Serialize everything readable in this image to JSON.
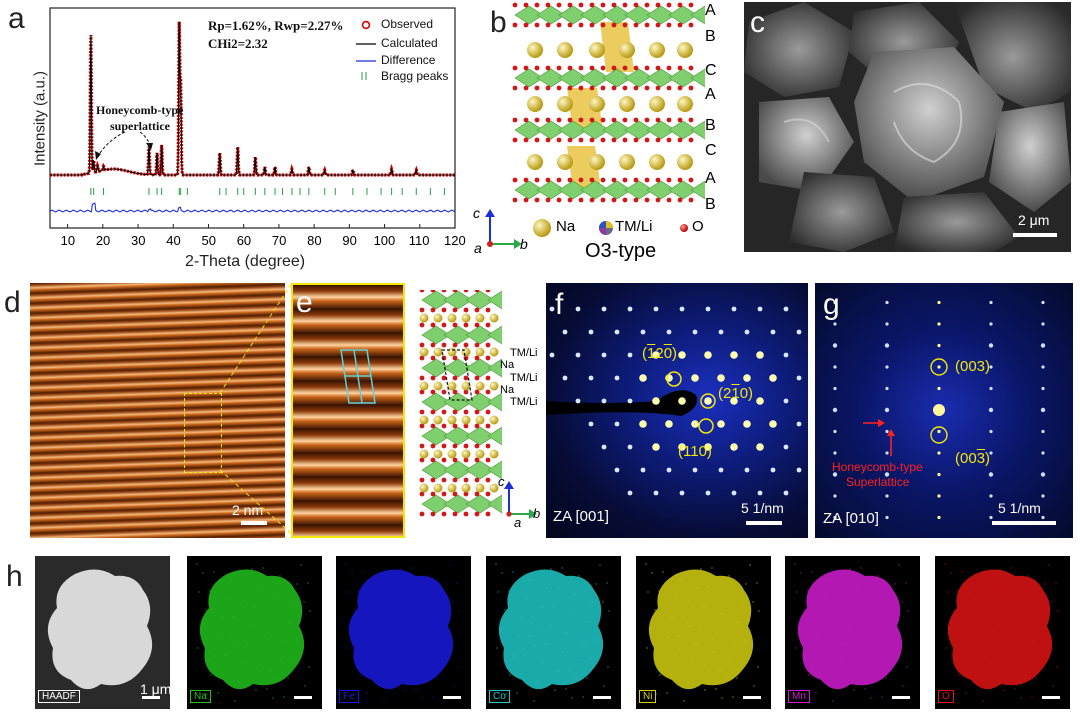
{
  "panels": {
    "a": {
      "label": "a",
      "stats_line1": "Rp=1.62%, Rwp=2.27%",
      "stats_line2": "CHi2=2.32",
      "legend": [
        "Observed",
        "Calculated",
        "Difference",
        "Bragg peaks"
      ],
      "annotation_line1": "Honeycomb-type",
      "annotation_line2": "superlattice",
      "ylabel": "Intensity (a.u.)",
      "xlabel": "2-Theta (degree)",
      "xticks": [
        "10",
        "20",
        "30",
        "40",
        "50",
        "60",
        "70",
        "80",
        "90",
        "100",
        "110",
        "120"
      ]
    },
    "b": {
      "label": "b",
      "stacking": [
        "A",
        "B",
        "C",
        "A",
        "B",
        "C",
        "A",
        "B"
      ],
      "legend_na": "Na",
      "legend_tm": "TM/Li",
      "legend_o": "O",
      "title": "O3-type",
      "axis_c": "c",
      "axis_a": "a",
      "axis_b": "b"
    },
    "c": {
      "label": "c",
      "scale": "2 μm"
    },
    "d": {
      "label": "d",
      "scale": "2 nm"
    },
    "e": {
      "label": "e",
      "layer_labels": [
        "TM/Li",
        "Na",
        "TM/Li",
        "Na",
        "TM/Li"
      ],
      "axis_c": "c",
      "axis_a": "a",
      "axis_b": "b"
    },
    "f": {
      "label": "f",
      "spots": [
        "(1̅2̅0)",
        "(2̅1̅0)",
        "(110)"
      ],
      "spot_1": "(120)",
      "spot_2": "(210)",
      "spot_3": "(110)",
      "zone": "ZA [001]",
      "scale": "5 1/nm"
    },
    "g": {
      "label": "g",
      "spot_1": "(003)",
      "spot_2": "(003)",
      "annotation_line1": "Honeycomb-type",
      "annotation_line2": "Superlattice",
      "zone": "ZA [010]",
      "scale": "5 1/nm"
    },
    "h": {
      "label": "h",
      "scale": "1 μm",
      "maps": [
        {
          "tag": "HAADF",
          "color": "#d8d8d8"
        },
        {
          "tag": "Na",
          "color": "#22c21e"
        },
        {
          "tag": "Fe",
          "color": "#1a1adf"
        },
        {
          "tag": "Co",
          "color": "#1ec8c8"
        },
        {
          "tag": "Ni",
          "color": "#d4d010"
        },
        {
          "tag": "Mn",
          "color": "#d21cd2"
        },
        {
          "tag": "O",
          "color": "#e01414"
        }
      ]
    }
  },
  "colors": {
    "observed": "#e00000",
    "calculated": "#000000",
    "difference": "#1f2fd6",
    "bragg": "#2a9a4a",
    "annotation_yellow": "#f3e60a",
    "annotation_red": "#ff2020"
  }
}
